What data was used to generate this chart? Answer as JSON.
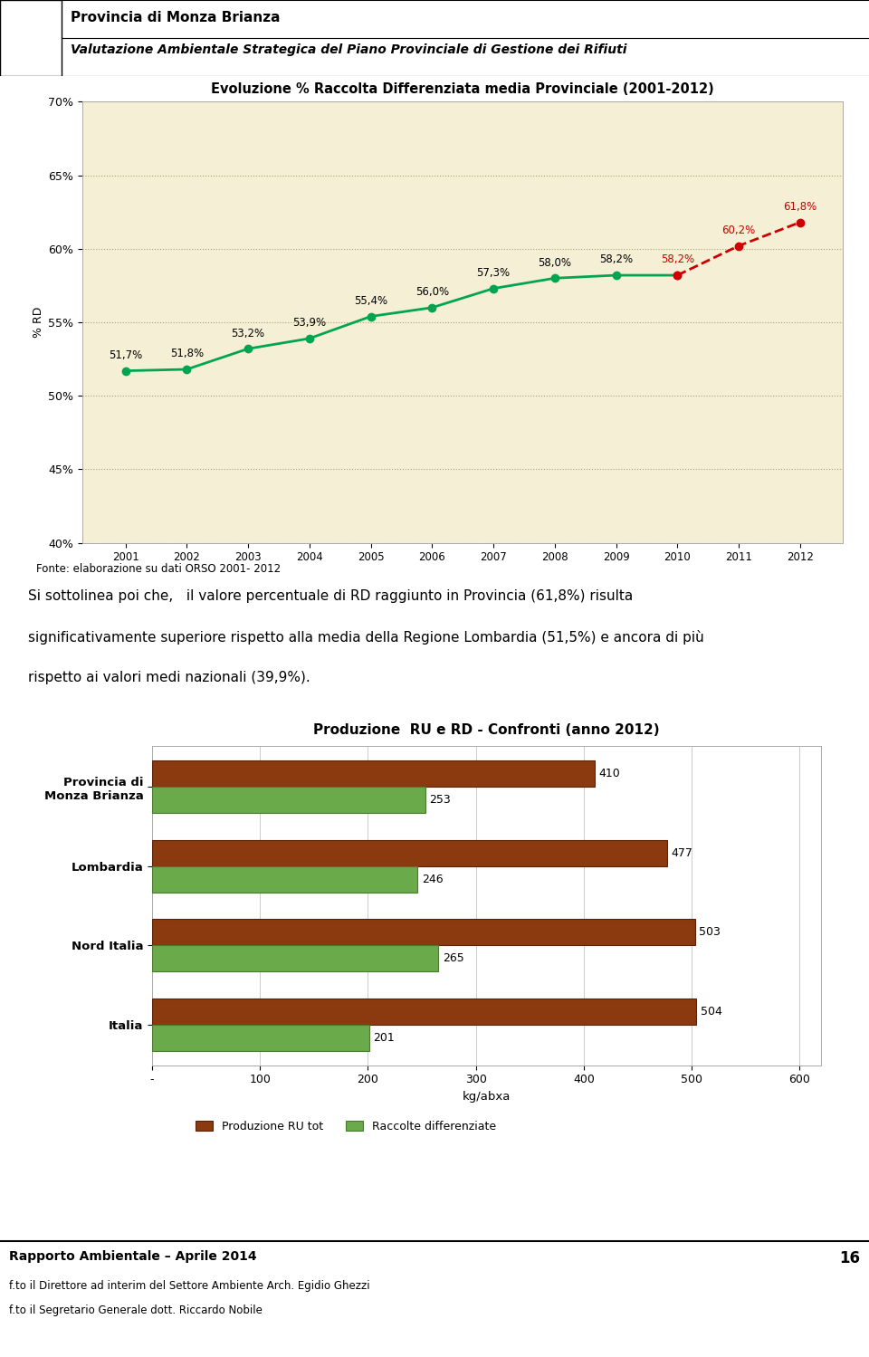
{
  "line_chart": {
    "title": "Evoluzione % Raccolta Differenziata media Provinciale (2001-2012)",
    "years": [
      2001,
      2002,
      2003,
      2004,
      2005,
      2006,
      2007,
      2008,
      2009,
      2010,
      2011,
      2012
    ],
    "values": [
      51.7,
      51.8,
      53.2,
      53.9,
      55.4,
      56.0,
      57.3,
      58.0,
      58.2,
      58.2,
      60.2,
      61.8
    ],
    "labels": [
      "51,7%",
      "51,8%",
      "53,2%",
      "53,9%",
      "55,4%",
      "56,0%",
      "57,3%",
      "58,0%",
      "58,2%",
      "58,2%",
      "60,2%",
      "61,8%"
    ],
    "solid_end_idx": 9,
    "ylabel": "% RD",
    "ylim": [
      40,
      70
    ],
    "yticks": [
      40,
      45,
      50,
      55,
      60,
      65,
      70
    ],
    "ytick_labels": [
      "40%",
      "45%",
      "50%",
      "55%",
      "60%",
      "65%",
      "70%"
    ],
    "bg_color": "#f5efd5",
    "line_color_solid": "#00a550",
    "line_color_dashed": "#cc0000",
    "label_color_solid": "#000000",
    "label_color_dashed": "#cc0000",
    "fonte": "Fonte: elaborazione su dati ORSO 2001- 2012"
  },
  "bar_chart": {
    "title": "Produzione  RU e RD - Confronti (anno 2012)",
    "categories": [
      "Provincia di\nMonza Brianza",
      "Lombardia",
      "Nord Italia",
      "Italia"
    ],
    "ru_values": [
      410,
      477,
      503,
      504
    ],
    "rd_values": [
      253,
      246,
      265,
      201
    ],
    "ru_color": "#8B3A0F",
    "rd_color": "#6aaa4b",
    "ru_edge": "#5a2008",
    "rd_edge": "#4a7a30",
    "xlabel": "kg/abxa",
    "xticks": [
      0,
      100,
      200,
      300,
      400,
      500,
      600
    ],
    "xtick_labels": [
      "-",
      "100",
      "200",
      "300",
      "400",
      "500",
      "600"
    ],
    "bg_color": "#ffffff",
    "legend_ru": "Produzione RU tot",
    "legend_rd": "Raccolte differenziate"
  },
  "header": {
    "title1": "Provincia di Monza Brianza",
    "title2": "Valutazione Ambientale Strategica del Piano Provinciale di Gestione dei Rifiuti"
  },
  "body_text_line1": "Si sottolinea poi che,   il valore percentuale di RD raggiunto in Provincia (61,8%) risulta",
  "body_text_line2": "significativamente superiore rispetto alla media della Regione Lombardia (51,5%) e ancora di più",
  "body_text_line3": "rispetto ai valori medi nazionali (39,9%).",
  "footer": {
    "line1": "Rapporto Ambientale – Aprile 2014",
    "line2": "f.to il Direttore ad interim del Settore Ambiente Arch. Egidio Ghezzi",
    "line3": "f.to il Segretario Generale dott. Riccardo Nobile",
    "page": "16"
  }
}
